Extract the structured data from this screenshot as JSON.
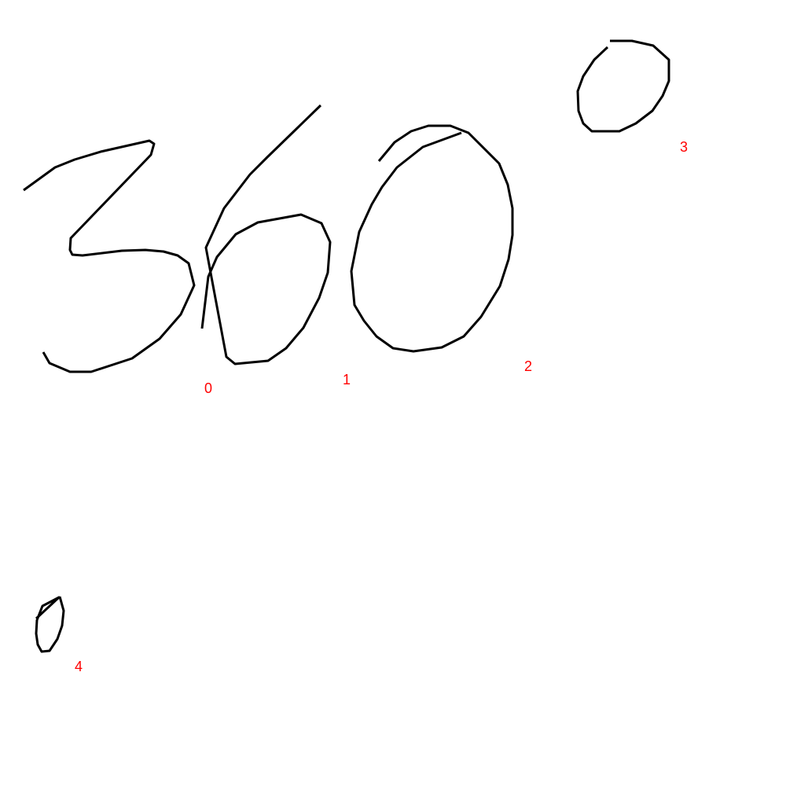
{
  "stroke_color": "#000000",
  "label_color": "#ff0000",
  "strokes": [
    {
      "label": "0"
    },
    {
      "label": "1"
    },
    {
      "label": "2"
    },
    {
      "label": "3"
    },
    {
      "label": "4"
    }
  ]
}
